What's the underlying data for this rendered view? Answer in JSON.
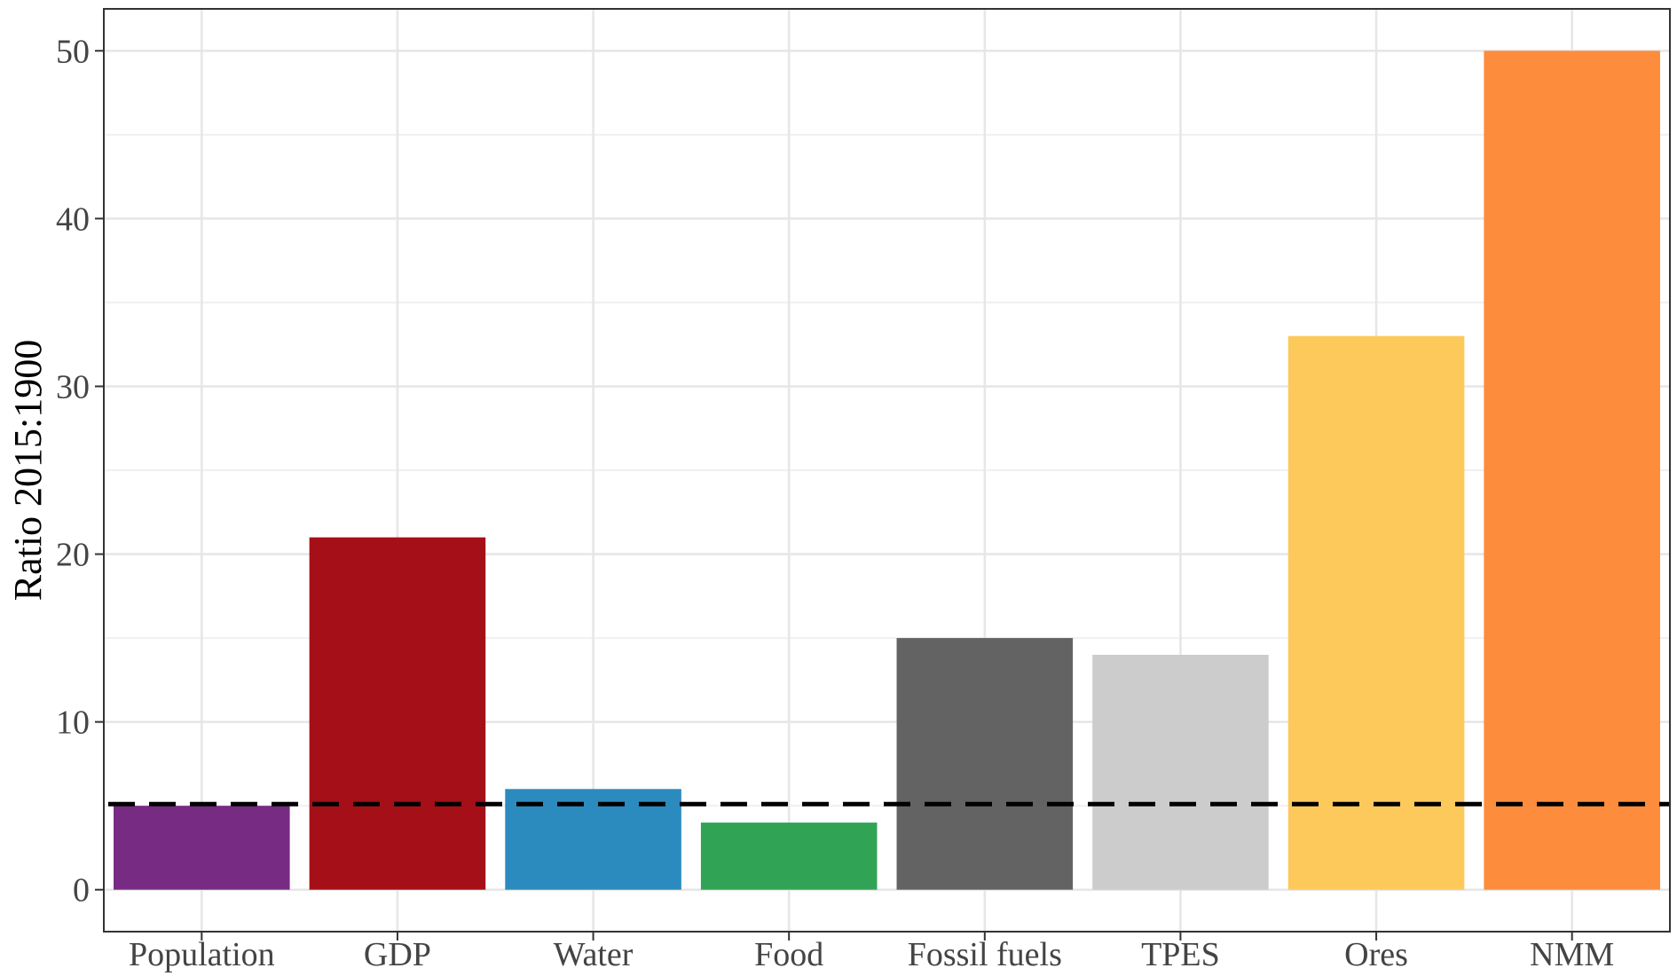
{
  "chart_data": {
    "type": "bar",
    "categories": [
      "Population",
      "GDP",
      "Water",
      "Food",
      "Fossil fuels",
      "TPES",
      "Ores",
      "NMM"
    ],
    "values": [
      5,
      21,
      6,
      4,
      15,
      14,
      33,
      50
    ],
    "colors": [
      "#772b83",
      "#a50f18",
      "#2b8bbf",
      "#31a354",
      "#636363",
      "#cccccc",
      "#fdc95b",
      "#fd8c3c"
    ],
    "ylabel": "Ratio 2015:1900",
    "xlabel": "",
    "title": "",
    "ylim": [
      -2.5,
      52.5
    ],
    "yticks": [
      0,
      10,
      20,
      30,
      40,
      50
    ],
    "ytick_labels": [
      "0",
      "10",
      "20",
      "30",
      "40",
      "50"
    ],
    "reference_line": {
      "value": 5.1,
      "style": "dashed",
      "color": "#000000"
    },
    "grid": true,
    "legend": "none"
  }
}
